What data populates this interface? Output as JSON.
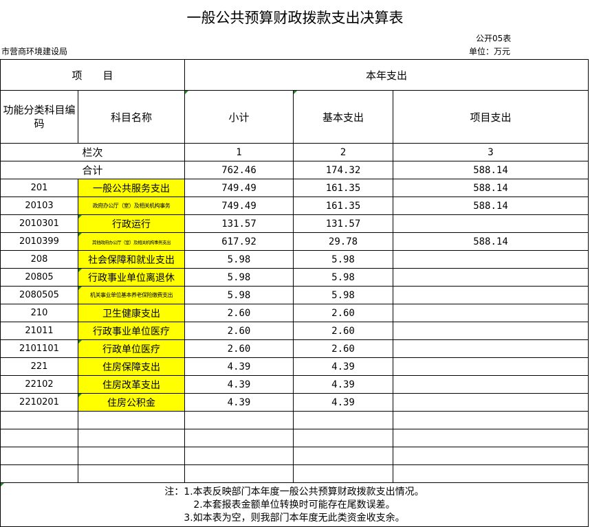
{
  "title": "一般公共预算财政拨款支出决算表",
  "table_number": "公开05表",
  "department": "市营商环境建设局",
  "unit": "单位：万元",
  "headers": {
    "item": "项　　目",
    "current_year": "本年支出",
    "func_code": "功能分类科目编码",
    "subject_name": "科目名称",
    "subtotal": "小计",
    "basic": "基本支出",
    "project": "项目支出"
  },
  "column_index_row": {
    "label": "栏次",
    "c1": "1",
    "c2": "2",
    "c3": "3"
  },
  "total_row": {
    "label": "合计",
    "subtotal": "762.46",
    "basic": "174.32",
    "project": "588.14"
  },
  "rows": [
    {
      "code": "201",
      "name": "一般公共服务支出",
      "subtotal": "749.49",
      "basic": "161.35",
      "project": "588.14"
    },
    {
      "code": "20103",
      "name": "政府办公厅（室）及相关机构事务",
      "subtotal": "749.49",
      "basic": "161.35",
      "project": "588.14"
    },
    {
      "code": "2010301",
      "name": "行政运行",
      "subtotal": "131.57",
      "basic": "131.57",
      "project": ""
    },
    {
      "code": "2010399",
      "name": "其他政府办公厅（室）及相关机构事务支出",
      "subtotal": "617.92",
      "basic": "29.78",
      "project": "588.14"
    },
    {
      "code": "208",
      "name": "社会保障和就业支出",
      "subtotal": "5.98",
      "basic": "5.98",
      "project": ""
    },
    {
      "code": "20805",
      "name": "行政事业单位离退休",
      "subtotal": "5.98",
      "basic": "5.98",
      "project": ""
    },
    {
      "code": "2080505",
      "name": "机关事业单位基本养老保险缴费支出",
      "subtotal": "5.98",
      "basic": "5.98",
      "project": ""
    },
    {
      "code": "210",
      "name": "卫生健康支出",
      "subtotal": "2.60",
      "basic": "2.60",
      "project": ""
    },
    {
      "code": "21011",
      "name": "行政事业单位医疗",
      "subtotal": "2.60",
      "basic": "2.60",
      "project": ""
    },
    {
      "code": "2101101",
      "name": "行政单位医疗",
      "subtotal": "2.60",
      "basic": "2.60",
      "project": ""
    },
    {
      "code": "221",
      "name": "住房保障支出",
      "subtotal": "4.39",
      "basic": "4.39",
      "project": ""
    },
    {
      "code": "22102",
      "name": "住房改革支出",
      "subtotal": "4.39",
      "basic": "4.39",
      "project": ""
    },
    {
      "code": "2210201",
      "name": "住房公积金",
      "subtotal": "4.39",
      "basic": "4.39",
      "project": ""
    }
  ],
  "notes": [
    "注：1.本表反映部门本年度一般公共预算财政拨款支出情况。",
    "2.本套报表金额单位转换时可能存在尾数误差。",
    "3.如本表为空，则我部门本年度无此类资金收支余。"
  ]
}
